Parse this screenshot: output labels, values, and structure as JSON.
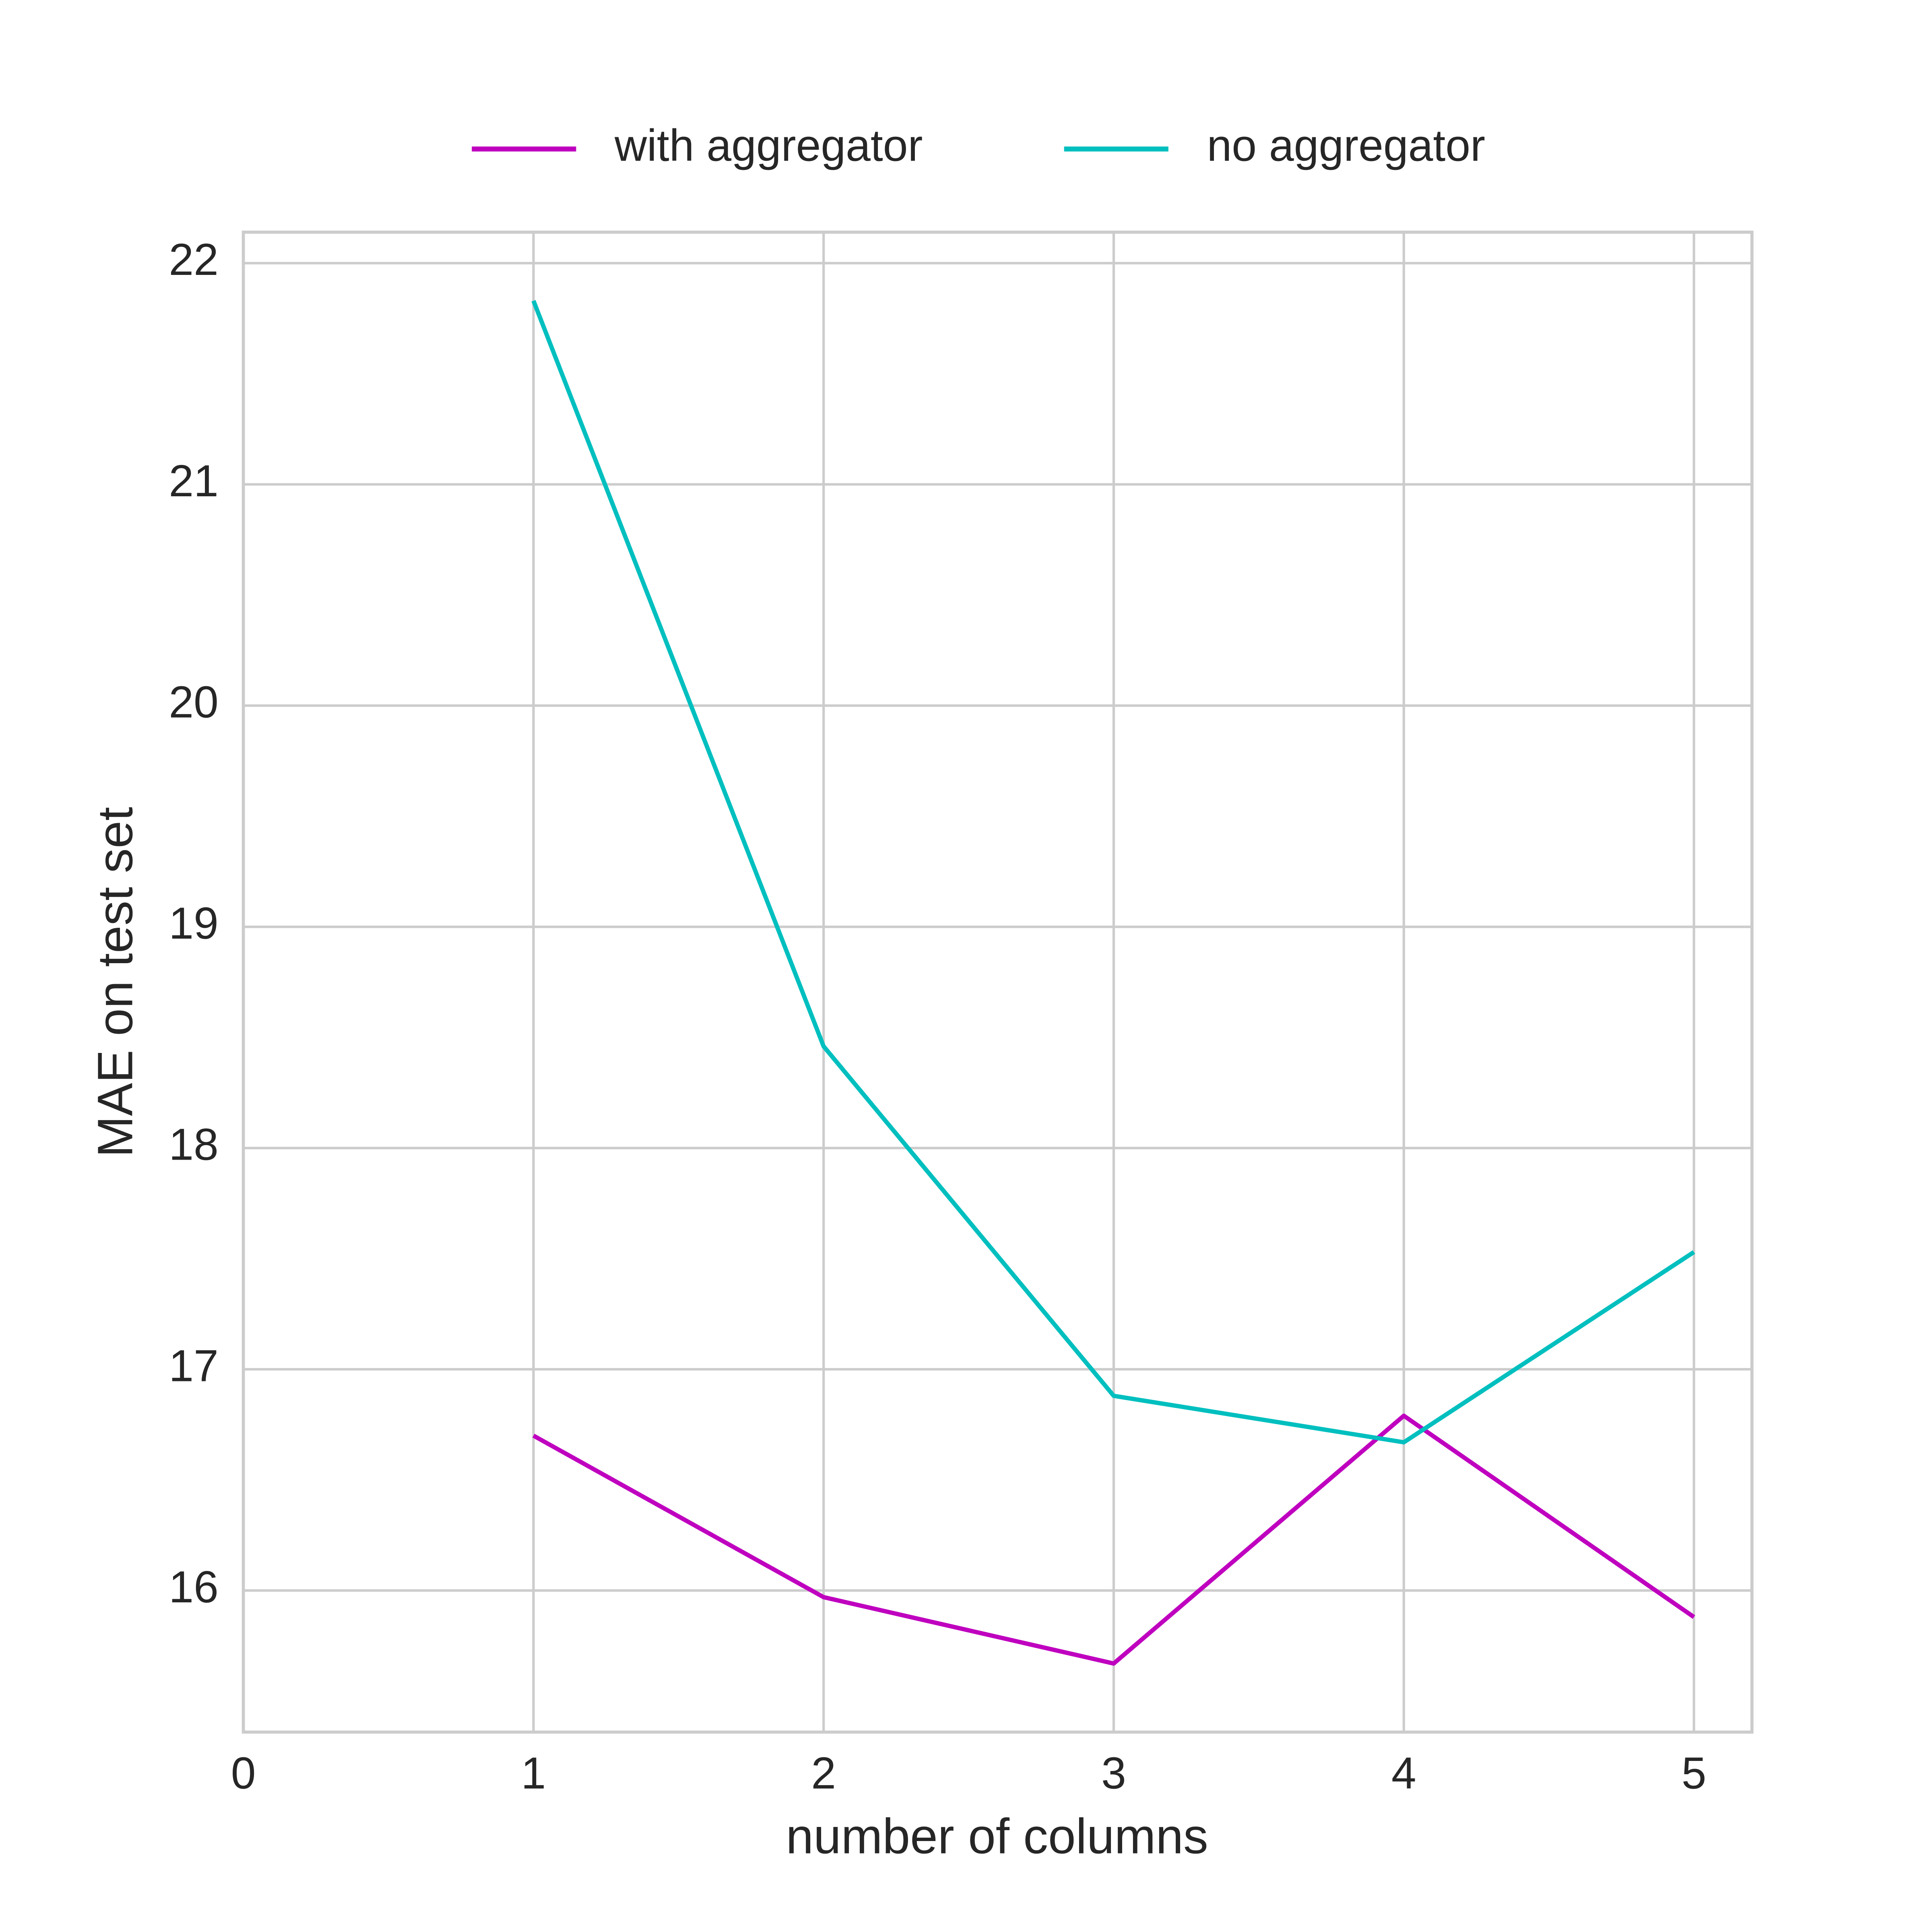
{
  "chart_data": {
    "type": "line",
    "xlabel": "number of columns",
    "ylabel": "MAE on test set",
    "x": [
      1,
      2,
      3,
      4,
      5
    ],
    "series": [
      {
        "name": "with aggregator",
        "color": "#bf00bf",
        "values": [
          16.7,
          15.97,
          15.67,
          16.79,
          15.88
        ]
      },
      {
        "name": "no aggregator",
        "color": "#00bfbf",
        "values": [
          21.83,
          18.46,
          16.88,
          16.67,
          17.53
        ]
      }
    ],
    "xlim": [
      0,
      5.2
    ],
    "xticks": [
      0,
      1,
      2,
      3,
      4,
      5
    ],
    "ylim": [
      15.36,
      22.14
    ],
    "yticks": [
      16,
      17,
      18,
      19,
      20,
      21,
      22
    ],
    "grid": true,
    "legend": "top"
  }
}
